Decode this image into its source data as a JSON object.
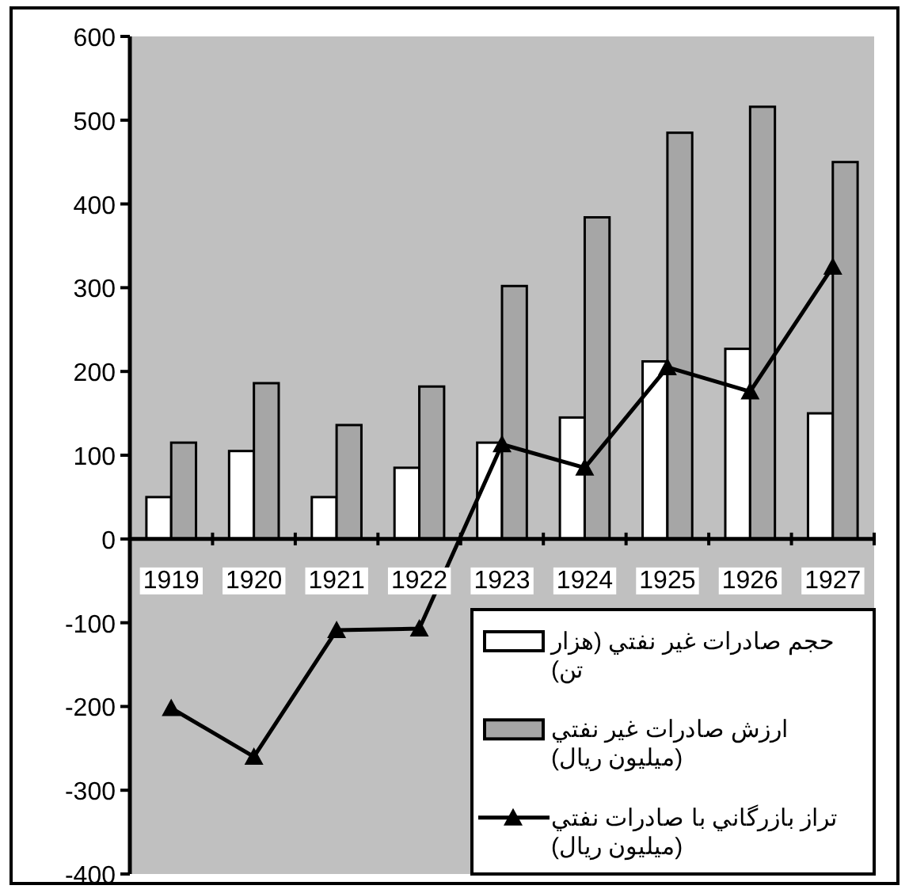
{
  "chart_data": {
    "type": "bar",
    "categories": [
      "1919",
      "1920",
      "1921",
      "1922",
      "1923",
      "1924",
      "1925",
      "1926",
      "1927"
    ],
    "series": [
      {
        "name": "حجم صادرات غير نفتي (هزار تن)",
        "color": "#ffffff",
        "values": [
          50,
          105,
          50,
          85,
          115,
          145,
          212,
          227,
          150
        ]
      },
      {
        "name": "ارزش صادرات غير نفتي (ميليون ريال)",
        "color": "#a6a6a6",
        "values": [
          115,
          186,
          136,
          182,
          302,
          384,
          485,
          516,
          450
        ]
      },
      {
        "name": "تراز بازرگاني با صادرات نفتي (ميليون ريال)",
        "type": "line",
        "color": "#000000",
        "marker": "triangle",
        "line_style": "solid",
        "values": [
          -202,
          -260,
          -109,
          -107,
          113,
          85,
          205,
          176,
          325
        ]
      }
    ],
    "ylim": [
      -400,
      600
    ],
    "yticks": [
      -400,
      -300,
      -200,
      -100,
      0,
      100,
      200,
      300,
      400,
      500,
      600
    ],
    "grid": false,
    "legend": "bottom right"
  }
}
